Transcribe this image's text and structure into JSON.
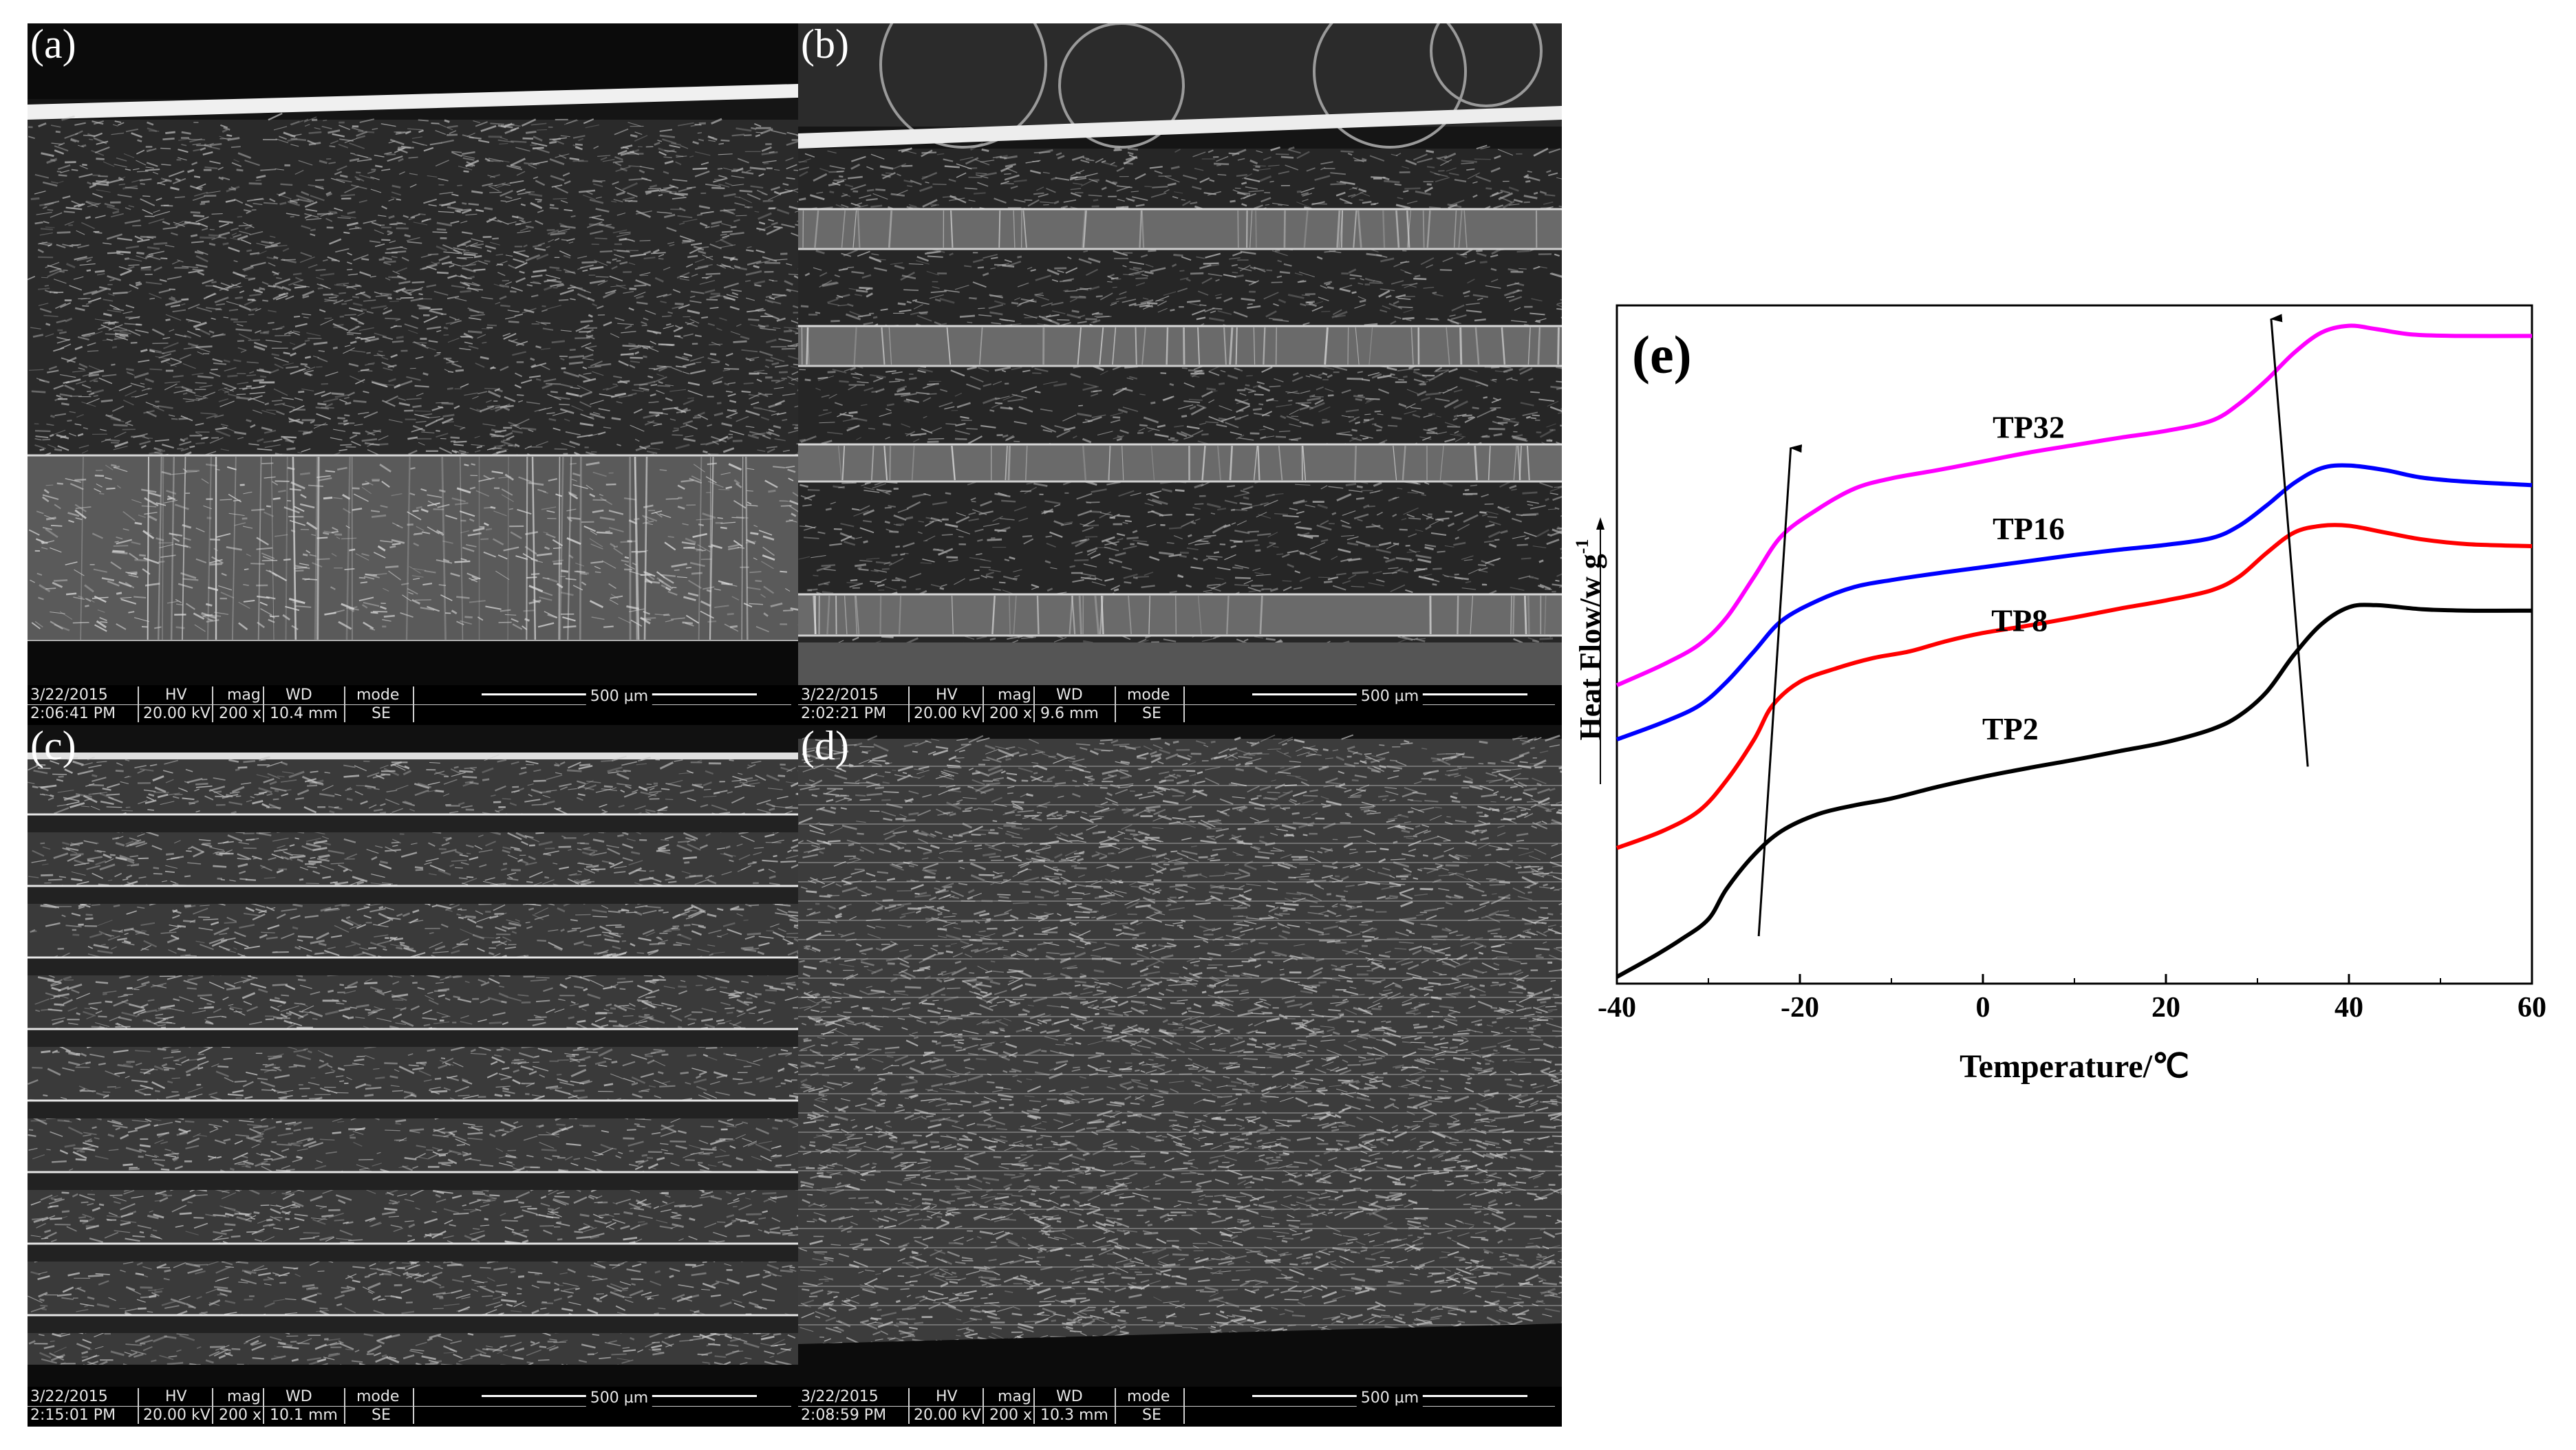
{
  "sem_panels": [
    {
      "id": "a",
      "label": "(a)",
      "date": "3/22/2015",
      "time": "2:06:41 PM",
      "hv_label": "HV",
      "hv": "20.00 kV",
      "mag_label": "mag",
      "mag": "200 x",
      "wd_label": "WD",
      "wd": "10.4 mm",
      "mode_label": "mode",
      "mode": "SE",
      "scale": "500 µm"
    },
    {
      "id": "b",
      "label": "(b)",
      "date": "3/22/2015",
      "time": "2:02:21 PM",
      "hv_label": "HV",
      "hv": "20.00 kV",
      "mag_label": "mag",
      "mag": "200 x",
      "wd_label": "WD",
      "wd": "9.6 mm",
      "mode_label": "mode",
      "mode": "SE",
      "scale": "500 µm"
    },
    {
      "id": "c",
      "label": "(c)",
      "date": "3/22/2015",
      "time": "2:15:01 PM",
      "hv_label": "HV",
      "hv": "20.00 kV",
      "mag_label": "mag",
      "mag": "200 x",
      "wd_label": "WD",
      "wd": "10.1 mm",
      "mode_label": "mode",
      "mode": "SE",
      "scale": "500 µm"
    },
    {
      "id": "d",
      "label": "(d)",
      "date": "3/22/2015",
      "time": "2:08:59 PM",
      "hv_label": "HV",
      "hv": "20.00 kV",
      "mag_label": "mag",
      "mag": "200 x",
      "wd_label": "WD",
      "wd": "10.3 mm",
      "mode_label": "mode",
      "mode": "SE",
      "scale": "500 µm"
    }
  ],
  "chart_data": {
    "type": "line",
    "panel_label": "(e)",
    "xlabel": "Temperature/℃",
    "ylabel": "Heat Flow/w g",
    "ylabel_sup": "-1",
    "xlim": [
      -40,
      60
    ],
    "ylim": [
      0,
      100
    ],
    "xticks": [
      -40,
      -20,
      0,
      20,
      40,
      60
    ],
    "yticks_shown": false,
    "series": [
      {
        "name": "TP32",
        "color": "#ff00ff",
        "points": [
          [
            -40,
            44
          ],
          [
            -35,
            47
          ],
          [
            -31,
            50
          ],
          [
            -28,
            54
          ],
          [
            -25,
            60
          ],
          [
            -22,
            66
          ],
          [
            -18,
            70
          ],
          [
            -14,
            73
          ],
          [
            -10,
            74.5
          ],
          [
            -5,
            75.7
          ],
          [
            0,
            77
          ],
          [
            5,
            78.3
          ],
          [
            10,
            79.4
          ],
          [
            15,
            80.5
          ],
          [
            20,
            81.5
          ],
          [
            25,
            83
          ],
          [
            28,
            85.5
          ],
          [
            31,
            89
          ],
          [
            34,
            93
          ],
          [
            37,
            96
          ],
          [
            40,
            97
          ],
          [
            43,
            96.5
          ],
          [
            47,
            95.7
          ],
          [
            52,
            95.5
          ],
          [
            60,
            95.5
          ]
        ]
      },
      {
        "name": "TP16",
        "color": "#0000ff",
        "points": [
          [
            -40,
            36
          ],
          [
            -35,
            38.5
          ],
          [
            -31,
            41
          ],
          [
            -28,
            44.5
          ],
          [
            -25,
            49
          ],
          [
            -22,
            53.5
          ],
          [
            -18,
            56.5
          ],
          [
            -14,
            58.5
          ],
          [
            -10,
            59.5
          ],
          [
            -5,
            60.5
          ],
          [
            0,
            61.4
          ],
          [
            5,
            62.3
          ],
          [
            10,
            63.2
          ],
          [
            15,
            64
          ],
          [
            20,
            64.7
          ],
          [
            25,
            65.7
          ],
          [
            28,
            67.5
          ],
          [
            31,
            70.5
          ],
          [
            34,
            73.8
          ],
          [
            37,
            76
          ],
          [
            40,
            76.4
          ],
          [
            44,
            75.7
          ],
          [
            48,
            74.6
          ],
          [
            53,
            74
          ],
          [
            60,
            73.5
          ]
        ]
      },
      {
        "name": "TP8",
        "color": "#ff0000",
        "points": [
          [
            -40,
            20
          ],
          [
            -35,
            22.5
          ],
          [
            -31,
            25.5
          ],
          [
            -28,
            30
          ],
          [
            -25,
            36
          ],
          [
            -23,
            41
          ],
          [
            -20,
            44.5
          ],
          [
            -16,
            46.5
          ],
          [
            -12,
            48
          ],
          [
            -8,
            49
          ],
          [
            -4,
            50.5
          ],
          [
            0,
            51.7
          ],
          [
            5,
            52.8
          ],
          [
            10,
            54
          ],
          [
            15,
            55.3
          ],
          [
            20,
            56.5
          ],
          [
            25,
            58
          ],
          [
            28,
            60
          ],
          [
            31,
            63.5
          ],
          [
            34,
            66.5
          ],
          [
            37,
            67.5
          ],
          [
            40,
            67.5
          ],
          [
            44,
            66.5
          ],
          [
            48,
            65.5
          ],
          [
            53,
            64.8
          ],
          [
            60,
            64.5
          ]
        ]
      },
      {
        "name": "TP2",
        "color": "#000000",
        "points": [
          [
            -40,
            1
          ],
          [
            -36,
            4
          ],
          [
            -33,
            6.5
          ],
          [
            -30,
            9.5
          ],
          [
            -28,
            14
          ],
          [
            -25,
            19
          ],
          [
            -22,
            22.5
          ],
          [
            -18,
            25
          ],
          [
            -14,
            26.3
          ],
          [
            -10,
            27.3
          ],
          [
            -5,
            29
          ],
          [
            0,
            30.5
          ],
          [
            5,
            31.8
          ],
          [
            10,
            33
          ],
          [
            15,
            34.3
          ],
          [
            20,
            35.6
          ],
          [
            25,
            37.5
          ],
          [
            28,
            39.5
          ],
          [
            31,
            43
          ],
          [
            34,
            48.5
          ],
          [
            37,
            53
          ],
          [
            40,
            55.5
          ],
          [
            43,
            55.8
          ],
          [
            48,
            55.2
          ],
          [
            53,
            55
          ],
          [
            60,
            55
          ]
        ]
      }
    ],
    "series_label_anchor": [
      {
        "x": 5,
        "y": 80.5
      },
      {
        "x": 5,
        "y": 65.5
      },
      {
        "x": 4,
        "y": 52
      },
      {
        "x": 3,
        "y": 36
      }
    ],
    "annotation_arrows": [
      {
        "from": [
          -24.5,
          7
        ],
        "to": [
          -21,
          79
        ]
      },
      {
        "from": [
          35.5,
          32
        ],
        "to": [
          31.5,
          98
        ]
      }
    ]
  }
}
